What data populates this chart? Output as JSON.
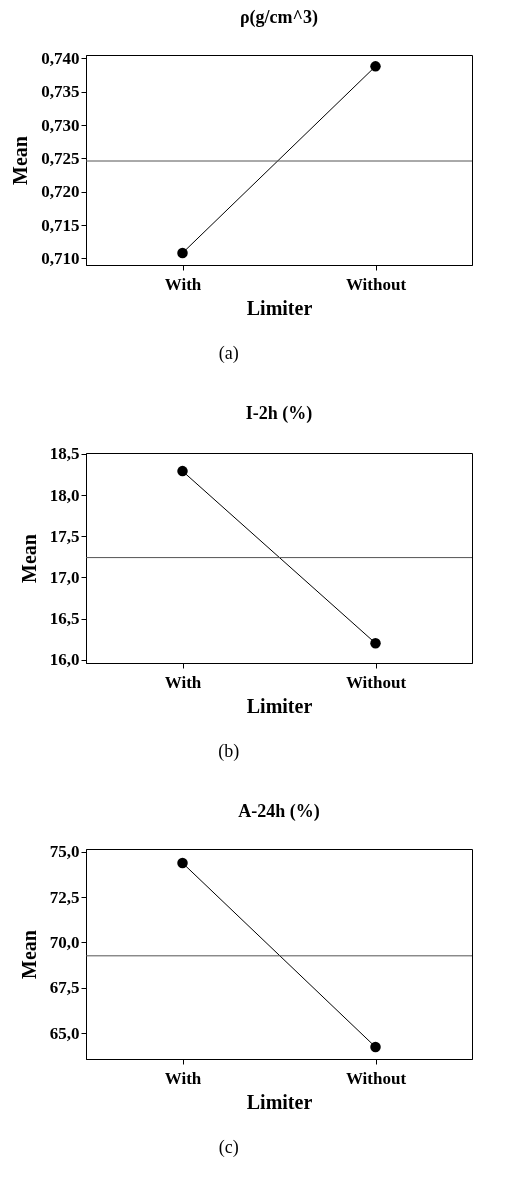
{
  "chart_data": [
    {
      "type": "line",
      "title": "ρ(g/cm^3)",
      "xlabel": "Limiter",
      "ylabel": "Mean",
      "categories": [
        "With",
        "Without"
      ],
      "series": [
        {
          "color": "#000000",
          "values": [
            0.7108,
            0.7388
          ]
        }
      ],
      "ylim": [
        0.709,
        0.7405
      ],
      "yticks": [
        {
          "value": 0.71,
          "label": "0,710"
        },
        {
          "value": 0.715,
          "label": "0,715"
        },
        {
          "value": 0.72,
          "label": "0,720"
        },
        {
          "value": 0.725,
          "label": "0,725"
        },
        {
          "value": 0.73,
          "label": "0,730"
        },
        {
          "value": 0.735,
          "label": "0,735"
        },
        {
          "value": 0.74,
          "label": "0,740"
        }
      ],
      "ref_lines": [
        {
          "axis": "y",
          "value": 0.7246,
          "color": "#555555"
        }
      ],
      "marker": "circle",
      "line_style": "solid",
      "annotations": [
        "(a)"
      ]
    },
    {
      "type": "line",
      "title": "I-2h (%)",
      "xlabel": "Limiter",
      "ylabel": "Mean",
      "categories": [
        "With",
        "Without"
      ],
      "series": [
        {
          "color": "#000000",
          "values": [
            18.29,
            16.2
          ]
        }
      ],
      "ylim": [
        15.96,
        18.51
      ],
      "yticks": [
        {
          "value": 16,
          "label": "16,0"
        },
        {
          "value": 16.5,
          "label": "16,5"
        },
        {
          "value": 17,
          "label": "17,0"
        },
        {
          "value": 17.5,
          "label": "17,5"
        },
        {
          "value": 18,
          "label": "18,0"
        },
        {
          "value": 18.5,
          "label": "18,5"
        }
      ],
      "ref_lines": [
        {
          "axis": "y",
          "value": 17.24,
          "color": "#555555"
        }
      ],
      "marker": "circle",
      "line_style": "solid",
      "annotations": [
        "(b)"
      ]
    },
    {
      "type": "line",
      "title": "A-24h (%)",
      "xlabel": "Limiter",
      "ylabel": "Mean",
      "categories": [
        "With",
        "Without"
      ],
      "series": [
        {
          "color": "#000000",
          "values": [
            74.38,
            64.23
          ]
        }
      ],
      "ylim": [
        63.57,
        75.15
      ],
      "yticks": [
        {
          "value": 65,
          "label": "65,0"
        },
        {
          "value": 67.5,
          "label": "67,5"
        },
        {
          "value": 70,
          "label": "70,0"
        },
        {
          "value": 72.5,
          "label": "72,5"
        },
        {
          "value": 75,
          "label": "75,0"
        }
      ],
      "ref_lines": [
        {
          "axis": "y",
          "value": 69.26,
          "color": "#555555"
        }
      ],
      "marker": "circle",
      "line_style": "solid",
      "annotations": [
        "(c)"
      ]
    }
  ]
}
